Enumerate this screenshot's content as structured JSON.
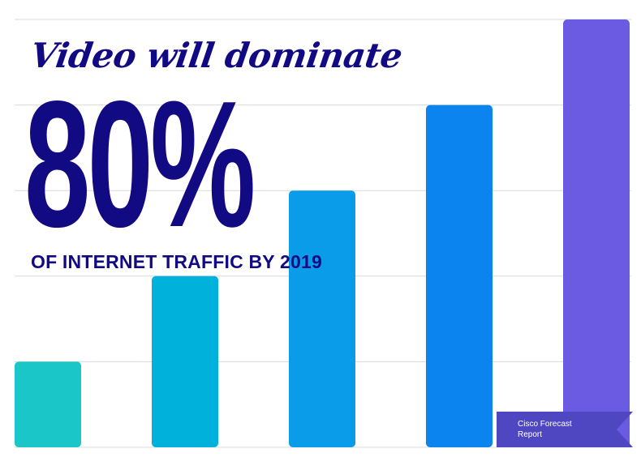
{
  "headline": "Video will dominate",
  "big_value": "80%",
  "subheadline": "OF INTERNET TRAFFIC BY 2019",
  "source_ribbon": "Cisco Forecast Report",
  "colors": {
    "text": "#120a82",
    "ribbon": "#4f47c2",
    "grid": "#d9d9d9",
    "bars": [
      "#1bc6c8",
      "#00b2db",
      "#0a9ce8",
      "#0b84f0",
      "#6b5be2"
    ]
  },
  "chart_data": {
    "type": "bar",
    "categories": [
      "",
      "",
      "",
      "",
      ""
    ],
    "values": [
      1,
      2,
      3,
      4,
      5
    ],
    "ylim": [
      0,
      5
    ],
    "grid": true,
    "legend": "none"
  }
}
